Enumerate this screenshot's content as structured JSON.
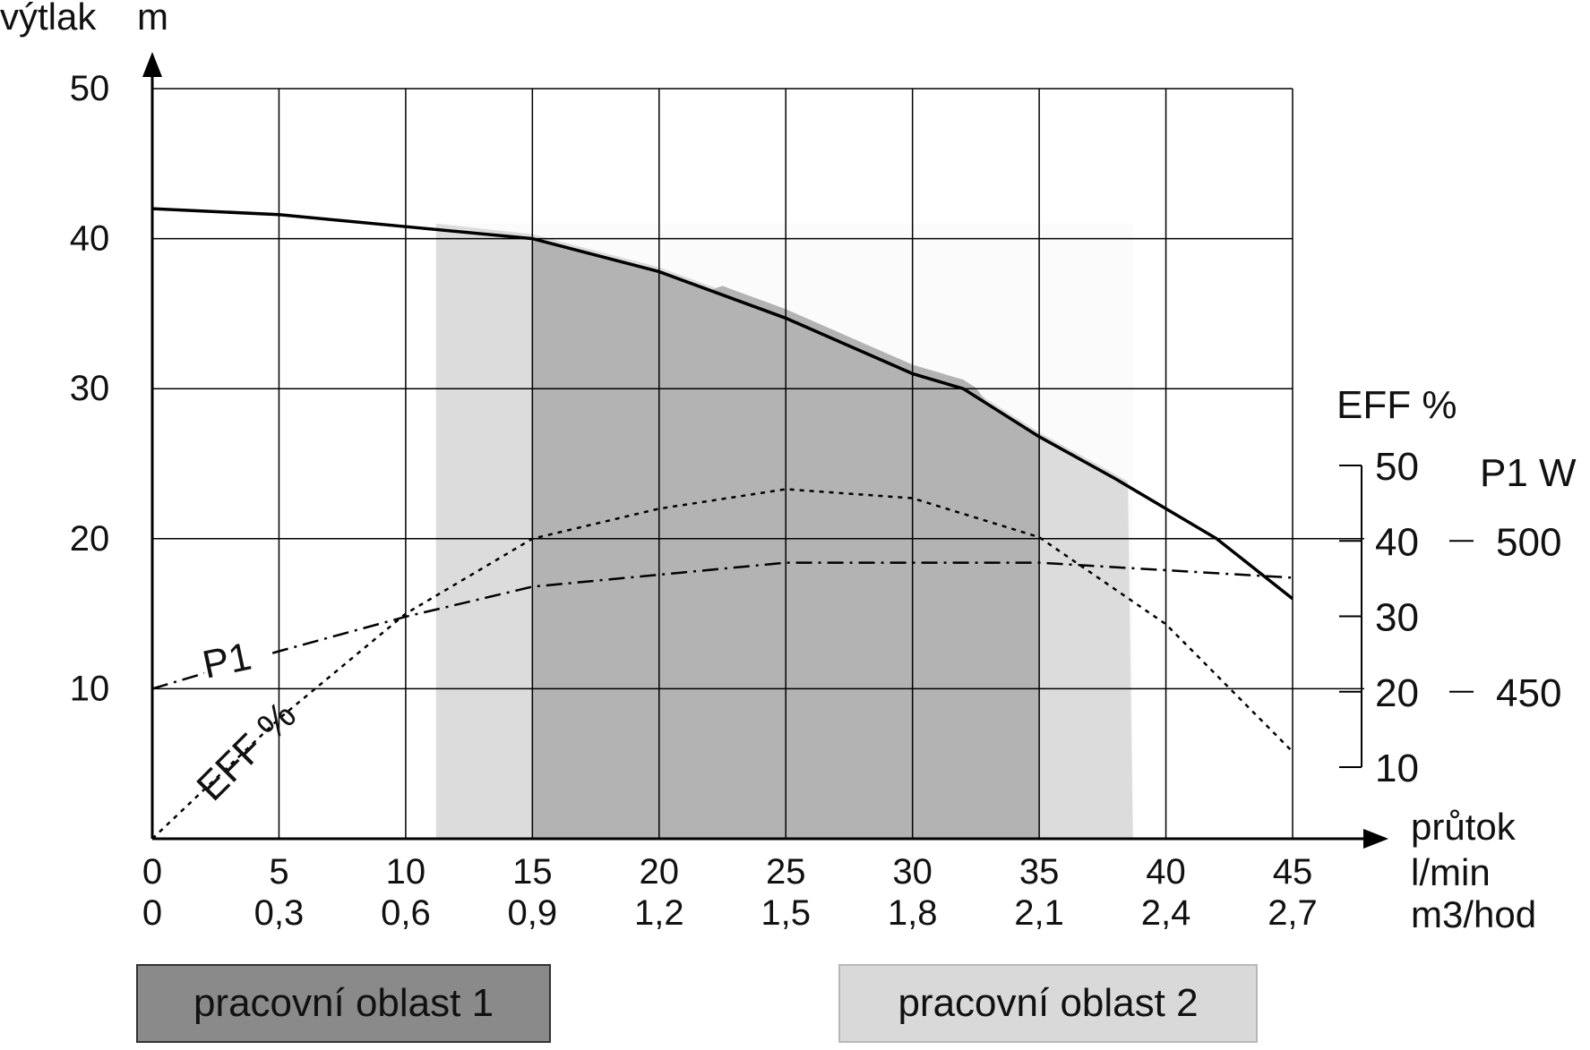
{
  "chart_data": {
    "type": "line",
    "y_axis": {
      "label": "výtlak",
      "unit": "m",
      "range": [
        0,
        50
      ],
      "ticks": [
        "10",
        "20",
        "30",
        "40",
        "50"
      ]
    },
    "x_axis": {
      "label": "průtok",
      "unit_lmin": "l/min",
      "unit_m3h": "m3/hod",
      "range": [
        0,
        45
      ],
      "ticks_lmin": [
        "0",
        "5",
        "10",
        "15",
        "20",
        "25",
        "30",
        "35",
        "40",
        "45"
      ],
      "ticks_m3h": [
        "0",
        "0,3",
        "0,6",
        "0,9",
        "1,2",
        "1,5",
        "1,8",
        "2,1",
        "2,4",
        "2,7"
      ]
    },
    "eff_axis": {
      "label": "EFF %",
      "range": [
        0,
        50
      ],
      "ticks": [
        "10",
        "20",
        "30",
        "40",
        "50"
      ]
    },
    "p1_axis": {
      "label": "P1 W",
      "ticks": [
        "450",
        "500"
      ]
    },
    "grid": true,
    "series": [
      {
        "name": "výtlak",
        "style": "solid",
        "x": [
          0,
          5,
          10,
          15,
          20,
          25,
          30,
          32,
          35,
          38,
          42,
          45
        ],
        "y": [
          42,
          41.6,
          40.8,
          40,
          37.8,
          34.7,
          31,
          30,
          26.8,
          24,
          20,
          16
        ]
      },
      {
        "name": "EFF %",
        "style": "dotted",
        "axis": "eff",
        "x": [
          0,
          5,
          10,
          15,
          20,
          25,
          30,
          35,
          40,
          45
        ],
        "y": [
          0,
          8,
          15,
          20,
          22,
          23.3,
          22.7,
          20.1,
          14.3,
          5.8
        ]
      },
      {
        "name": "P1",
        "style": "dash-dot",
        "x": [
          0,
          5,
          10,
          15,
          20,
          25,
          30,
          35,
          40,
          45
        ],
        "y": [
          10,
          12.5,
          14.8,
          16.8,
          17.6,
          18.4,
          18.4,
          18.4,
          17.9,
          17.4
        ]
      }
    ],
    "areas": [
      {
        "name": "pracovní oblast 1",
        "color": "#b3b3b3",
        "x_range": [
          15,
          35
        ]
      },
      {
        "name": "pracovní oblast 2",
        "color": "#dcdcdc",
        "x_range": [
          11.2,
          38.7
        ]
      }
    ],
    "legend": {
      "area_1": "pracovní oblast 1",
      "area_2": "pracovní oblast 2"
    },
    "curve_labels": {
      "p1": "P1",
      "eff": "EFF %"
    }
  }
}
